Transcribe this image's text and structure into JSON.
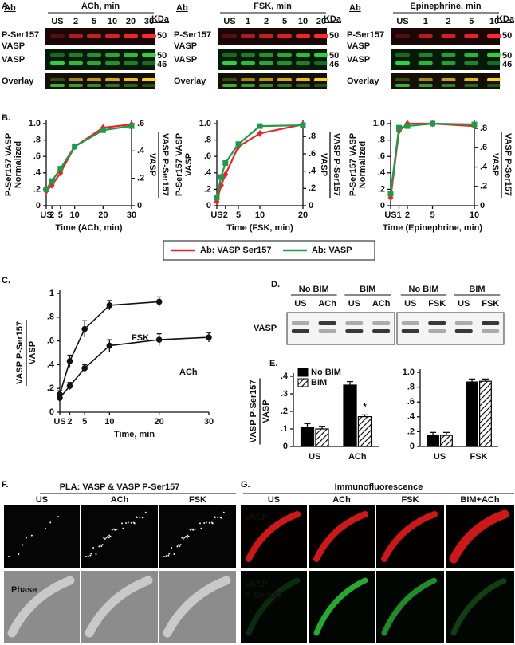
{
  "panel_a": {
    "label": "A.",
    "blots": [
      {
        "ab": "Ab",
        "title": "ACh, min",
        "lanes": [
          "US",
          "2",
          "5",
          "10",
          "20",
          "30"
        ],
        "unit": "KDa",
        "rows": [
          [
            "P-Ser157",
            "VASP"
          ],
          [
            "VASP"
          ],
          [
            "Overlay"
          ]
        ],
        "sizes": [
          "50",
          "50",
          "46"
        ]
      },
      {
        "ab": "Ab",
        "title": "FSK, min",
        "lanes": [
          "US",
          "1",
          "2",
          "5",
          "10",
          "20"
        ],
        "unit": "KDa",
        "rows": [
          [
            "P-Ser157",
            "VASP"
          ],
          [
            "VASP"
          ],
          [
            "Overlay"
          ]
        ],
        "sizes": [
          "50",
          "50",
          "46"
        ]
      },
      {
        "ab": "Ab",
        "title": "Epinephrine, min",
        "lanes": [
          "US",
          "1",
          "2",
          "5",
          "10"
        ],
        "unit": "KDa",
        "rows": [
          [
            "P-Ser157",
            "VASP"
          ],
          [
            "VASP"
          ],
          [
            "Overlay"
          ]
        ],
        "sizes": [
          "50",
          "50",
          "46"
        ]
      }
    ]
  },
  "panel_b": {
    "label": "B."
  },
  "panel_c": {
    "label": "C."
  },
  "panel_d": {
    "label": "D.",
    "row": "VASP",
    "blots": [
      {
        "groups": [
          {
            "name": "No BIM",
            "lanes": [
              "US",
              "ACh"
            ]
          },
          {
            "name": "BIM",
            "lanes": [
              "US",
              "ACh"
            ]
          }
        ]
      },
      {
        "groups": [
          {
            "name": "No BIM",
            "lanes": [
              "US",
              "FSK"
            ]
          },
          {
            "name": "BIM",
            "lanes": [
              "US",
              "FSK"
            ]
          }
        ]
      }
    ]
  },
  "panel_e": {
    "label": "E."
  },
  "panel_f": {
    "label": "F.",
    "title": "PLA: VASP & VASP P-Ser157",
    "columns": [
      "US",
      "ACh",
      "FSK"
    ],
    "image_label": "Phase"
  },
  "panel_g": {
    "label": "G.",
    "title": "Immunofluorescence",
    "columns": [
      "US",
      "ACh",
      "FSK",
      "BIM+ACh"
    ],
    "rows": [
      [
        "VASP"
      ],
      [
        "VASP",
        "P-Ser157"
      ]
    ]
  },
  "chart_data": [
    {
      "type": "line",
      "x": [
        0,
        2,
        5,
        10,
        20,
        30
      ],
      "xlim": [
        0,
        30
      ],
      "xticks": [
        {
          "value": 0,
          "label": "US"
        },
        2,
        5,
        10,
        20,
        30
      ],
      "xlabel": "Time (ACh, min)",
      "ylim": [
        0,
        1
      ],
      "yticks": [
        0,
        {
          "value": 0.2,
          "label": ".2"
        },
        {
          "value": 0.4,
          "label": ".4"
        },
        {
          "value": 0.6,
          "label": ".6"
        },
        {
          "value": 0.8,
          "label": ".8"
        },
        {
          "value": 1,
          "label": "1.0"
        }
      ],
      "ylabel": [
        "P-Ser157 VASP",
        "Normalized"
      ],
      "y2lim": [
        0,
        0.6
      ],
      "y2ticks": [
        0,
        {
          "value": 0.2,
          "label": ".2"
        },
        {
          "value": 0.4,
          "label": ".4"
        },
        {
          "value": 0.6,
          "label": ".6"
        }
      ],
      "y2label": [
        "VASP P-Ser157",
        "VASP"
      ],
      "legend": "below",
      "series": [
        {
          "name": "Ab: VASP Ser157",
          "color": "#e8262a",
          "marker": "diamond",
          "values": [
            0.18,
            0.25,
            0.4,
            0.72,
            0.95,
            0.99
          ]
        },
        {
          "name": "Ab: VASP",
          "color": "#1f9a48",
          "marker": "square",
          "values": [
            0.2,
            0.3,
            0.45,
            0.72,
            0.92,
            0.97
          ]
        }
      ]
    },
    {
      "type": "line",
      "x": [
        0,
        1,
        2,
        5,
        10,
        20
      ],
      "xlim": [
        0,
        20
      ],
      "xticks": [
        {
          "value": 0,
          "label": "US"
        },
        2,
        5,
        10,
        20
      ],
      "xlabel": "Time (FSK, min)",
      "ylim": [
        0,
        1
      ],
      "yticks": [
        0,
        {
          "value": 0.2,
          "label": ".2"
        },
        {
          "value": 0.4,
          "label": ".4"
        },
        {
          "value": 0.6,
          "label": ".6"
        },
        {
          "value": 0.8,
          "label": ".8"
        },
        {
          "value": 1,
          "label": "1.0"
        }
      ],
      "ylabel": [
        "P-Ser157 VASP",
        "VASP"
      ],
      "y2lim": [
        0,
        0.95
      ],
      "y2ticks": [
        0,
        {
          "value": 0.2,
          "label": ".2"
        },
        {
          "value": 0.4,
          "label": ".4"
        },
        {
          "value": 0.6,
          "label": ".6"
        },
        {
          "value": 0.8,
          "label": ".8"
        }
      ],
      "y2label": [
        "VASP P-Ser157",
        "VASP"
      ],
      "series": [
        {
          "color": "#e8262a",
          "marker": "diamond",
          "values": [
            0.05,
            0.25,
            0.38,
            0.72,
            0.88,
            0.99
          ]
        },
        {
          "color": "#1f9a48",
          "marker": "square",
          "values": [
            0.1,
            0.35,
            0.52,
            0.75,
            0.97,
            0.98
          ]
        }
      ]
    },
    {
      "type": "line",
      "x": [
        0,
        1,
        2,
        5,
        10
      ],
      "xlim": [
        0,
        10
      ],
      "xticks": [
        {
          "value": 0,
          "label": "US"
        },
        1,
        2,
        5,
        10
      ],
      "xlabel": "Time (Epinephrine, min)",
      "ylim": [
        0,
        1
      ],
      "yticks": [
        0,
        {
          "value": 0.2,
          "label": ".2"
        },
        {
          "value": 0.4,
          "label": ".4"
        },
        {
          "value": 0.6,
          "label": ".6"
        },
        {
          "value": 0.8,
          "label": ".8"
        },
        {
          "value": 1,
          "label": "1.0"
        }
      ],
      "ylabel": [
        "P-Ser157 VASP",
        "Normalized"
      ],
      "y2lim": [
        0,
        0.85
      ],
      "y2ticks": [
        0,
        {
          "value": 0.2,
          "label": ".2"
        },
        {
          "value": 0.4,
          "label": ".4"
        },
        {
          "value": 0.6,
          "label": ".6"
        },
        {
          "value": 0.8,
          "label": ".8"
        }
      ],
      "y2label": [
        "VASP P-Ser157",
        "VASP"
      ],
      "series": [
        {
          "color": "#e8262a",
          "marker": "diamond",
          "values": [
            0.1,
            0.91,
            1.0,
            1.0,
            0.97
          ]
        },
        {
          "color": "#1f9a48",
          "marker": "square",
          "values": [
            0.15,
            0.95,
            0.97,
            1.0,
            0.99
          ]
        }
      ]
    },
    {
      "type": "line",
      "xlim": [
        0,
        30
      ],
      "xticks": [
        {
          "value": 0,
          "label": "US"
        },
        2,
        5,
        10,
        20,
        30
      ],
      "xlabel": "Time, min",
      "ylim": [
        0,
        1
      ],
      "yticks": [
        0,
        {
          "value": 0.2,
          "label": ".2"
        },
        {
          "value": 0.4,
          "label": ".4"
        },
        {
          "value": 0.6,
          "label": ".6"
        },
        {
          "value": 0.8,
          "label": ".8"
        },
        1
      ],
      "ylabel": [
        "VASP P-Ser157",
        "VASP"
      ],
      "series": [
        {
          "name": "FSK",
          "color": "#111111",
          "marker": "circle",
          "x": [
            0,
            2,
            5,
            10,
            20
          ],
          "values": [
            0.15,
            0.43,
            0.7,
            0.9,
            0.93
          ],
          "errors": [
            0.03,
            0.05,
            0.07,
            0.04,
            0.04
          ]
        },
        {
          "name": "ACh",
          "color": "#111111",
          "marker": "circle",
          "x": [
            0,
            2,
            5,
            10,
            20,
            30
          ],
          "values": [
            0.12,
            0.22,
            0.37,
            0.56,
            0.61,
            0.63
          ],
          "errors": [
            0.03,
            0.03,
            0.03,
            0.05,
            0.05,
            0.04
          ]
        }
      ]
    },
    {
      "type": "bar",
      "categories": [
        "US",
        "ACh"
      ],
      "ylim": [
        0,
        0.4
      ],
      "yticks": [
        0,
        {
          "value": 0.1,
          "label": ".1"
        },
        {
          "value": 0.2,
          "label": ".2"
        },
        {
          "value": 0.3,
          "label": ".3"
        },
        {
          "value": 0.4,
          "label": ".4"
        }
      ],
      "ylabel": [
        "VASP P-Ser157",
        "VASP"
      ],
      "legend": "top-left",
      "annotation": "*",
      "series": [
        {
          "name": "No BIM",
          "color": "#000000",
          "values": [
            0.11,
            0.35
          ],
          "errors": [
            0.02,
            0.02
          ]
        },
        {
          "name": "BIM",
          "color": "#000000",
          "pattern": "hatch",
          "values": [
            0.1,
            0.17
          ],
          "errors": [
            0.015,
            0.01
          ]
        }
      ]
    },
    {
      "type": "bar",
      "categories": [
        "US",
        "FSK"
      ],
      "ylim": [
        0,
        1
      ],
      "yticks": [
        0,
        {
          "value": 0.2,
          "label": ".2"
        },
        {
          "value": 0.4,
          "label": ".4"
        },
        {
          "value": 0.6,
          "label": ".6"
        },
        {
          "value": 0.8,
          "label": ".8"
        },
        {
          "value": 1,
          "label": "1.0"
        }
      ],
      "series": [
        {
          "color": "#000000",
          "values": [
            0.15,
            0.87
          ],
          "errors": [
            0.04,
            0.04
          ]
        },
        {
          "color": "#000000",
          "pattern": "hatch",
          "values": [
            0.15,
            0.88
          ],
          "errors": [
            0.04,
            0.03
          ]
        }
      ]
    }
  ]
}
